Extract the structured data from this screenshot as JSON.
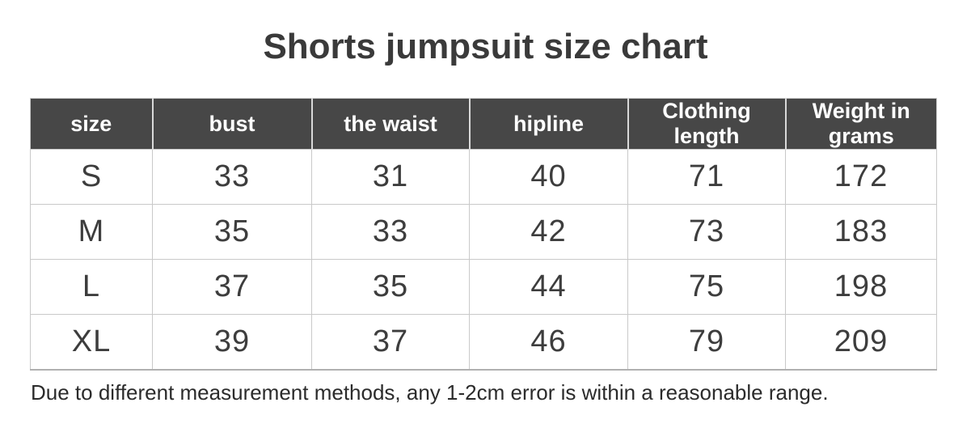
{
  "title": "Shorts jumpsuit size chart",
  "footer_note": "Due to different measurement methods, any 1-2cm error is within a reasonable range.",
  "colors": {
    "header_bg": "#474747",
    "header_text": "#ffffff",
    "body_text": "#3d3d3d",
    "grid_line": "#c9c9c9",
    "table_bottom_border": "#b0b0b0",
    "title_text": "#3a3a3a"
  },
  "chart_data": {
    "type": "table",
    "title": "Shorts jumpsuit size chart",
    "columns": [
      "size",
      "bust",
      "the waist",
      "hipline",
      "Clothing length",
      "Weight in grams"
    ],
    "rows": [
      [
        "S",
        "33",
        "31",
        "40",
        "71",
        "172"
      ],
      [
        "M",
        "35",
        "33",
        "42",
        "73",
        "183"
      ],
      [
        "L",
        "37",
        "35",
        "44",
        "75",
        "198"
      ],
      [
        "XL",
        "39",
        "37",
        "46",
        "79",
        "209"
      ]
    ],
    "footnote": "Due to different measurement methods, any 1-2cm error is within a reasonable range."
  }
}
